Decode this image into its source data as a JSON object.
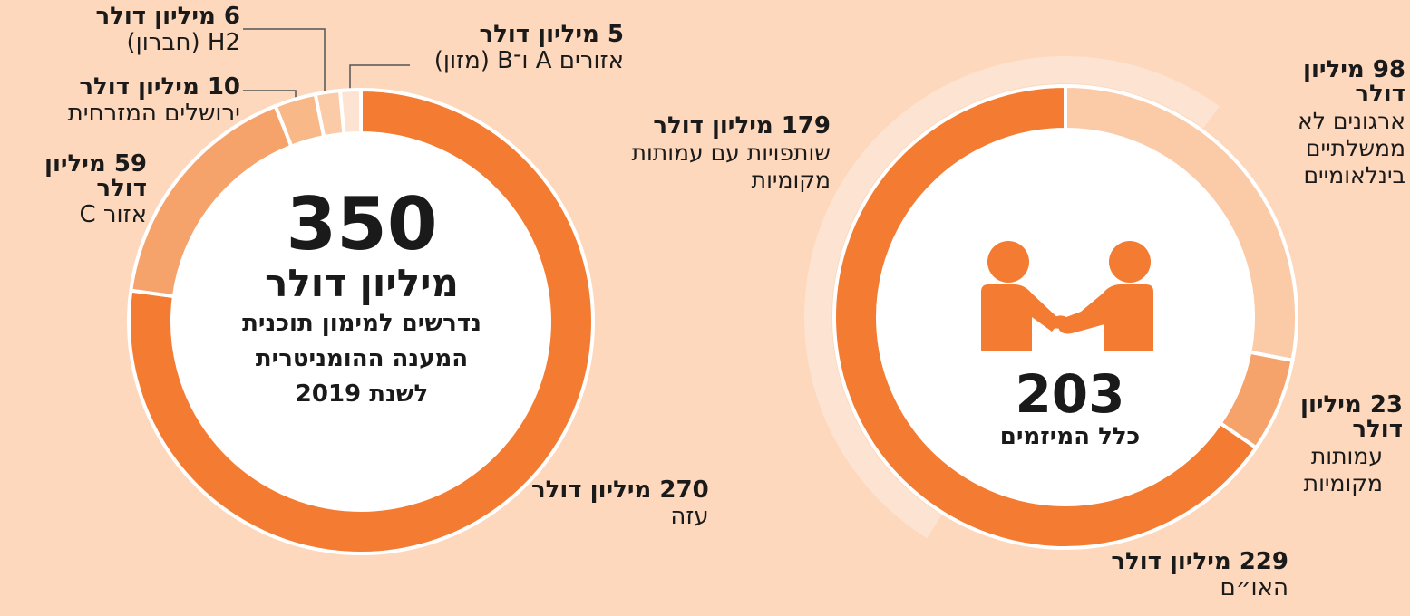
{
  "colors": {
    "background": "#fdd8bd",
    "accent": "#f47b32",
    "mid": "#f6a26b",
    "light": "#fbc9a6",
    "pale": "#fde4d2",
    "white": "#ffffff"
  },
  "chart_data": [
    {
      "type": "pie",
      "variant": "donut",
      "center": {
        "value": "350",
        "unit": "מיליון דולר",
        "description_lines": [
          "נדרשים למימון תוכנית",
          "המענה ההומניטרית",
          "לשנת 2019"
        ]
      },
      "slices": [
        {
          "amount_label": "270 מיליון דולר",
          "name": "עזה",
          "value": 270,
          "color": "#f47b32"
        },
        {
          "amount_label": "59 מיליון דולר",
          "name": "אזור C",
          "value": 59,
          "color": "#f6a26b"
        },
        {
          "amount_label": "10 מיליון דולר",
          "name": "ירושלים המזרחית",
          "value": 10,
          "color": "#f9b888"
        },
        {
          "amount_label": "6 מיליון דולר",
          "name": "H2 (חברון)",
          "value": 6,
          "color": "#fbcaa7"
        },
        {
          "amount_label": "5 מיליון דולר",
          "name": "אזורים A ו־B (מזון)",
          "value": 5,
          "color": "#fde4d2"
        }
      ]
    },
    {
      "type": "pie",
      "variant": "donut",
      "center": {
        "value": "203",
        "description": "כלל המיזמים",
        "icon": "handshake-icon"
      },
      "slices": [
        {
          "amount_label": "98 מיליון דולר",
          "name": "ארגונים לא ממשלתיים בינלאומיים",
          "value": 98,
          "color": "#fbcaa7"
        },
        {
          "amount_label": "23 מיליון דולר",
          "name": "עמותות מקומיות",
          "value": 23,
          "color": "#f6a26b"
        },
        {
          "amount_label": "229 מיליון דולר",
          "name": "האו״ם",
          "value": 229,
          "color": "#f47b32"
        }
      ],
      "outer_arc": {
        "amount_label": "179 מיליון דולר",
        "name": "שותפויות עם עמותות מקומיות",
        "value": 179,
        "color": "#fde4d2"
      }
    }
  ]
}
